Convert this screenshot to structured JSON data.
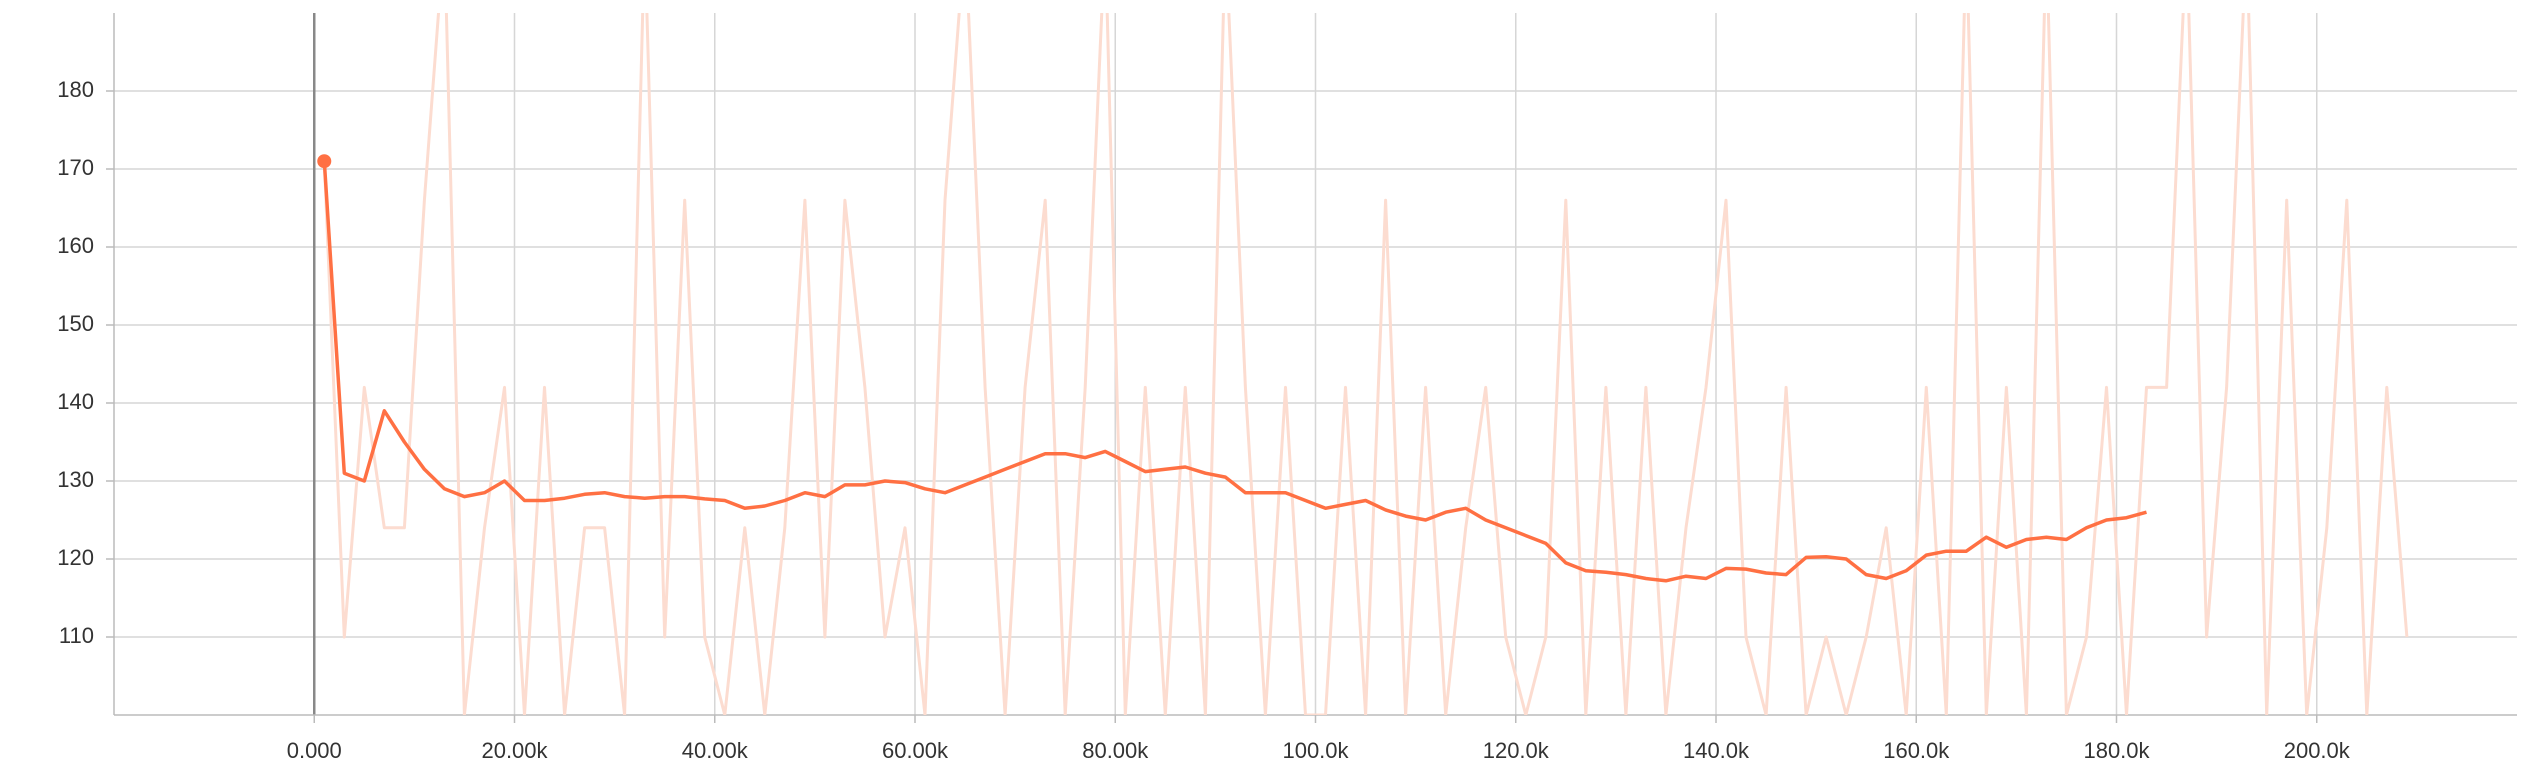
{
  "chart_data": {
    "type": "line",
    "xlim": [
      -20000,
      220000
    ],
    "ylim": [
      100,
      190
    ],
    "xticks": [
      {
        "value": 0,
        "label": "0.000"
      },
      {
        "value": 20000,
        "label": "20.00k"
      },
      {
        "value": 40000,
        "label": "40.00k"
      },
      {
        "value": 60000,
        "label": "60.00k"
      },
      {
        "value": 80000,
        "label": "80.00k"
      },
      {
        "value": 100000,
        "label": "100.0k"
      },
      {
        "value": 120000,
        "label": "120.0k"
      },
      {
        "value": 140000,
        "label": "140.0k"
      },
      {
        "value": 160000,
        "label": "160.0k"
      },
      {
        "value": 180000,
        "label": "180.0k"
      },
      {
        "value": 200000,
        "label": "200.0k"
      }
    ],
    "yticks": [
      110,
      120,
      130,
      140,
      150,
      160,
      170,
      180
    ],
    "grid": true,
    "series": [
      {
        "color": "#fcdcd0",
        "x": [
          1000,
          3000,
          5000,
          7000,
          9000,
          11000,
          13000,
          15000,
          17000,
          19000,
          21000,
          23000,
          25000,
          27000,
          29000,
          31000,
          33000,
          35000,
          37000,
          39000,
          41000,
          43000,
          45000,
          47000,
          49000,
          51000,
          53000,
          55000,
          57000,
          59000,
          61000,
          63000,
          65000,
          67000,
          69000,
          71000,
          73000,
          75000,
          77000,
          79000,
          81000,
          83000,
          85000,
          87000,
          89000,
          91000,
          93000,
          95000,
          97000,
          99000,
          101000,
          103000,
          105000,
          107000,
          109000,
          111000,
          113000,
          115000,
          117000,
          119000,
          121000,
          123000,
          125000,
          127000,
          129000,
          131000,
          133000,
          135000,
          137000,
          139000,
          141000,
          143000,
          145000,
          147000,
          149000,
          151000,
          153000,
          155000,
          157000,
          159000,
          161000,
          163000,
          165000,
          167000,
          169000,
          171000,
          173000,
          175000,
          177000,
          179000,
          181000,
          183000,
          185000,
          187000,
          189000,
          191000,
          193000,
          195000,
          197000,
          199000,
          201000,
          203000,
          205000,
          207000,
          209000
        ],
        "values": [
          171,
          110,
          142,
          124,
          124,
          166,
          200,
          100,
          124,
          142,
          100,
          142,
          100,
          124,
          124,
          100,
          200,
          110,
          166,
          110,
          100,
          124,
          100,
          124,
          166,
          110,
          166,
          142,
          110,
          124,
          100,
          166,
          200,
          142,
          100,
          142,
          166,
          100,
          142,
          200,
          100,
          142,
          100,
          142,
          100,
          200,
          142,
          100,
          142,
          100,
          100,
          142,
          100,
          166,
          100,
          142,
          100,
          124,
          142,
          110,
          100,
          110,
          166,
          100,
          142,
          100,
          142,
          100,
          124,
          142,
          166,
          110,
          100,
          142,
          100,
          110,
          100,
          110,
          124,
          100,
          142,
          100,
          200,
          100,
          142,
          100,
          200,
          100,
          110,
          142,
          100,
          142,
          142,
          200,
          110,
          142,
          200,
          100,
          166,
          100,
          124,
          166,
          100,
          142,
          110
        ]
      },
      {
        "color": "#ff7043",
        "x": [
          1000,
          3000,
          5000,
          7000,
          9000,
          11000,
          13000,
          15000,
          17000,
          19000,
          21000,
          23000,
          25000,
          27000,
          29000,
          31000,
          33000,
          35000,
          37000,
          39000,
          41000,
          43000,
          45000,
          47000,
          49000,
          51000,
          53000,
          55000,
          57000,
          59000,
          61000,
          63000,
          65000,
          67000,
          69000,
          71000,
          73000,
          75000,
          77000,
          79000,
          81000,
          83000,
          85000,
          87000,
          89000,
          91000,
          93000,
          95000,
          97000,
          99000,
          101000,
          103000,
          105000,
          107000,
          109000,
          111000,
          113000,
          115000,
          117000,
          119000,
          121000,
          123000,
          125000,
          127000,
          129000,
          131000,
          133000,
          135000,
          137000,
          139000,
          141000,
          143000,
          145000,
          147000,
          149000,
          151000,
          153000,
          155000,
          157000,
          159000,
          161000,
          163000,
          165000,
          167000,
          169000,
          171000,
          173000,
          175000,
          177000,
          179000,
          181000,
          183000
        ],
        "values": [
          171,
          131,
          130,
          139,
          135,
          131.5,
          129,
          128,
          128.5,
          130,
          127.5,
          127.5,
          127.8,
          128.3,
          128.5,
          128,
          127.8,
          128,
          128,
          127.7,
          127.5,
          126.5,
          126.8,
          127.5,
          128.5,
          128,
          129.5,
          129.5,
          130,
          129.8,
          129,
          128.5,
          129.5,
          130.5,
          131.5,
          132.5,
          133.5,
          133.5,
          133,
          133.8,
          132.5,
          131.2,
          131.5,
          131.8,
          131,
          130.5,
          128.5,
          128.5,
          128.5,
          127.5,
          126.5,
          127,
          127.5,
          126.3,
          125.5,
          125,
          126,
          126.5,
          125,
          124,
          123,
          122,
          119.5,
          118.5,
          118.3,
          118,
          117.5,
          117.2,
          117.8,
          117.5,
          118.8,
          118.7,
          118.2,
          118,
          120.2,
          120.3,
          120,
          118,
          117.5,
          118.5,
          120.5,
          121,
          121,
          122.8,
          121.5,
          122.5,
          122.8,
          122.5,
          124,
          125,
          125.3,
          126
        ]
      }
    ]
  }
}
